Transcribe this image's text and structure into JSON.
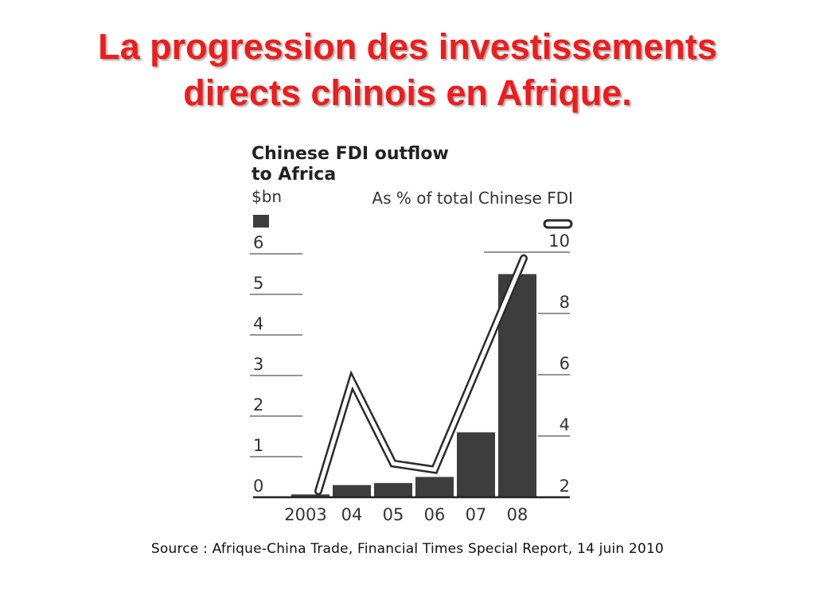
{
  "slide": {
    "title_line1": "La progression des investissements",
    "title_line2": "directs chinois en Afrique.",
    "source": "Source : Afrique-China Trade, Financial Times Special Report, 14 juin 2010"
  },
  "chart_data": {
    "type": "bar",
    "title_line1": "Chinese FDI outflow",
    "title_line2": "to Africa",
    "left_unit": "$bn",
    "right_unit": "As % of total Chinese FDI",
    "categories": [
      "2003",
      "04",
      "05",
      "06",
      "07",
      "08"
    ],
    "series": [
      {
        "kind": "bar",
        "axis": "left",
        "values": [
          0.07,
          0.3,
          0.35,
          0.5,
          1.6,
          5.5
        ]
      },
      {
        "kind": "line",
        "axis": "right",
        "values": [
          2.2,
          5.8,
          3.1,
          2.9,
          6.1,
          9.8
        ]
      }
    ],
    "ylim_left": [
      0,
      6
    ],
    "yticks_left": [
      "0",
      "1",
      "2",
      "3",
      "4",
      "5",
      "6"
    ],
    "ylim_right": [
      2,
      10
    ],
    "yticks_right": [
      "2",
      "4",
      "6",
      "8",
      "10"
    ],
    "grid": false,
    "colors": {
      "bar": "#3d3d3d",
      "line_fill": "#ffffff",
      "line_stroke": "#2a2a2a",
      "title": "#ee1c1c"
    }
  }
}
